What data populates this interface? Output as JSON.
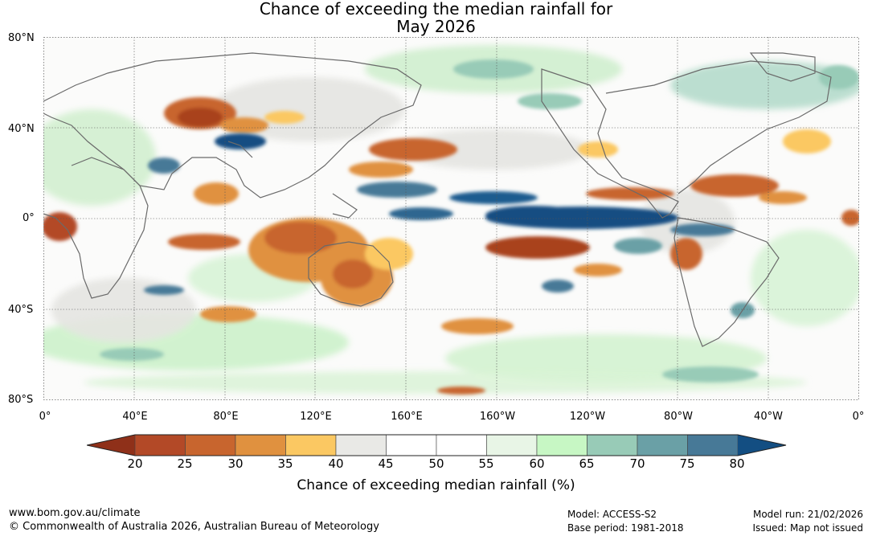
{
  "title": {
    "line1": "Chance of exceeding the median rainfall for",
    "line2": "May 2026"
  },
  "lat_labels": [
    "80°N",
    "40°N",
    "0°",
    "40°S",
    "80°S"
  ],
  "lon_labels": [
    "0°",
    "40°E",
    "80°E",
    "120°E",
    "160°E",
    "160°W",
    "120°W",
    "80°W",
    "40°W",
    "0°"
  ],
  "colorbar": {
    "ticks": [
      "20",
      "25",
      "30",
      "35",
      "40",
      "45",
      "50",
      "55",
      "60",
      "65",
      "70",
      "75",
      "80"
    ],
    "label": "Chance of exceeding median rainfall (%)",
    "low_color": "#8f3019",
    "high_color": "#134e82",
    "colors": [
      "#b34927",
      "#c8652e",
      "#e0913f",
      "#fbc862",
      "#e9e9e6",
      "#ffffff",
      "#ffffff",
      "#e8f5e6",
      "#c7f7c4",
      "#98cbb7",
      "#6aa0a6",
      "#477997"
    ]
  },
  "footer": {
    "website": "www.bom.gov.au/climate",
    "copyright": "© Commonwealth of Australia 2026, Australian Bureau of Meteorology",
    "model": "Model: ACCESS-S2",
    "base_period": "Base period: 1981-2018",
    "model_run": "Model run: 21/02/2026",
    "issued": "Issued: Map not issued"
  }
}
